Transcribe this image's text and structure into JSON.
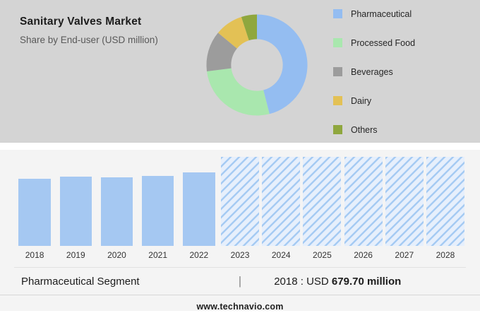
{
  "header": {
    "title": "Sanitary Valves Market",
    "subtitle": "Share by End-user (USD million)"
  },
  "legend": {
    "items": [
      {
        "label": "Pharmaceutical",
        "color": "#94bdf1"
      },
      {
        "label": "Processed Food",
        "color": "#a9e7ae"
      },
      {
        "label": "Beverages",
        "color": "#9c9c9c"
      },
      {
        "label": "Dairy",
        "color": "#e3c155"
      },
      {
        "label": "Others",
        "color": "#8fa73e"
      }
    ]
  },
  "chart_data": [
    {
      "type": "pie",
      "donut": true,
      "title": "Share by End-user (USD million)",
      "labels": [
        "Pharmaceutical",
        "Processed Food",
        "Beverages",
        "Dairy",
        "Others"
      ],
      "values": [
        46,
        27,
        13,
        9,
        5
      ],
      "colors": [
        "#94bdf1",
        "#a9e7ae",
        "#9c9c9c",
        "#e3c155",
        "#8fa73e"
      ],
      "legend_position": "right"
    },
    {
      "type": "bar",
      "title": "Pharmaceutical Segment (USD million)",
      "categories": [
        "2018",
        "2019",
        "2020",
        "2021",
        "2022",
        "2023",
        "2024",
        "2025",
        "2026",
        "2027",
        "2028"
      ],
      "series": [
        {
          "name": "Pharmaceutical segment market size (USD million)",
          "values": [
            679.7,
            700.1,
            691.5,
            705.8,
            742.3,
            null,
            null,
            null,
            null,
            null,
            null
          ]
        }
      ],
      "forecast_categories": [
        "2023",
        "2024",
        "2025",
        "2026",
        "2027",
        "2028"
      ],
      "ylim": [
        0,
        900
      ],
      "bar_color": "#a5c8f2",
      "grid": false,
      "note": "2023-2028 shown as hatched forecast columns without labeled values"
    }
  ],
  "caption": {
    "segment": "Pharmaceutical Segment",
    "divider": "|",
    "prefix": "2018 : USD",
    "value": "679.70 million"
  },
  "footer": {
    "site": "www.technavio.com"
  }
}
